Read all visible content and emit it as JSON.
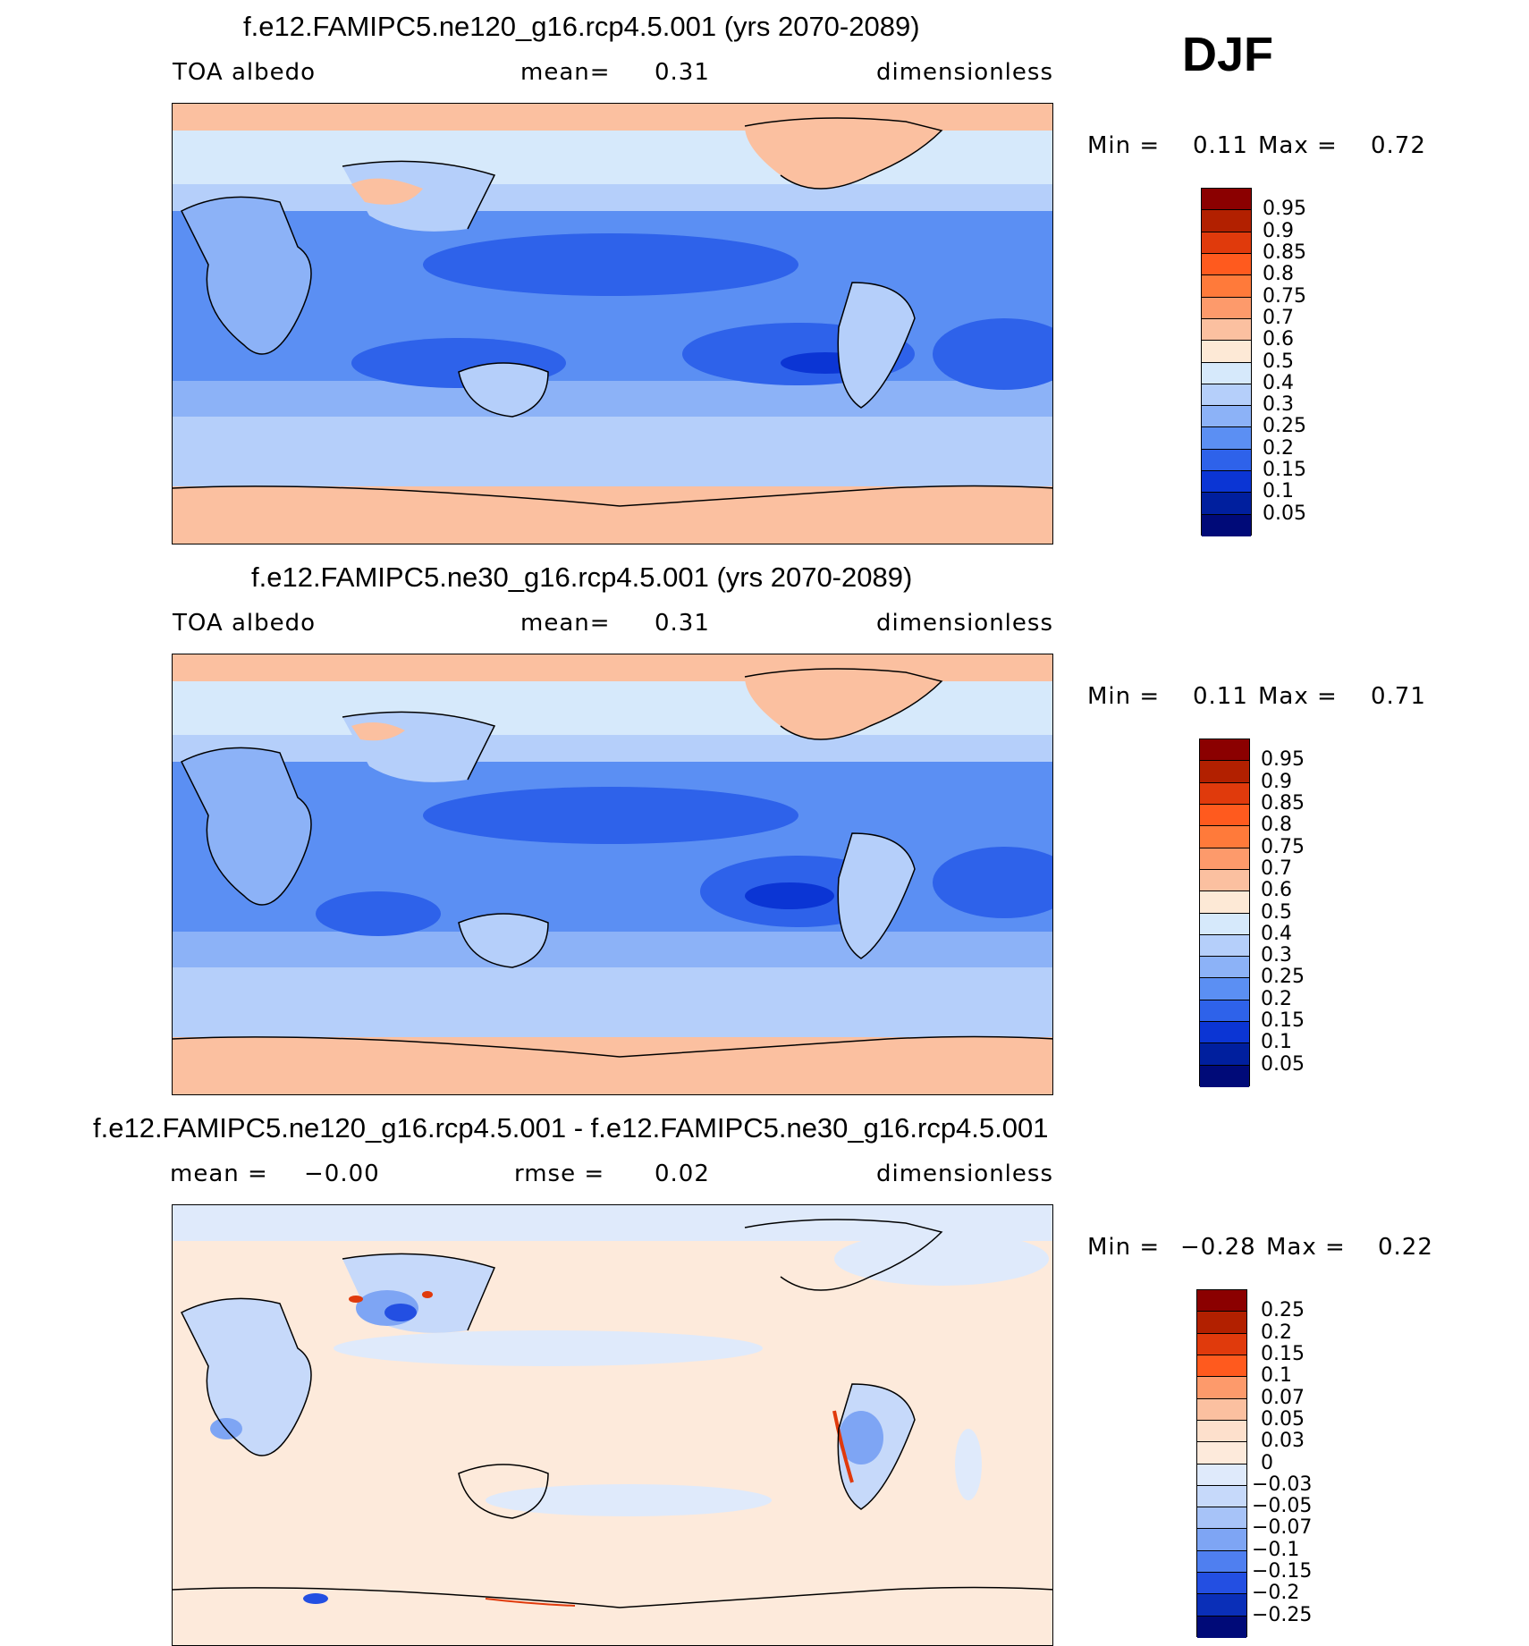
{
  "season": "DJF",
  "panels": [
    {
      "id": "top",
      "title": "f.e12.FAMIPC5.ne120_g16.rcp4.5.001 (yrs 2070-2089)",
      "left_label": "TOA albedo",
      "center_label": "mean=",
      "center_value": "0.31",
      "right_label": "dimensionless",
      "min_label": "Min =",
      "min_value": "0.11",
      "max_label": "Max =",
      "max_value": "0.72",
      "colorbar_labels": [
        "0.95",
        "0.9",
        "0.85",
        "0.8",
        "0.75",
        "0.7",
        "0.6",
        "0.5",
        "0.4",
        "0.3",
        "0.25",
        "0.2",
        "0.15",
        "0.1",
        "0.05"
      ]
    },
    {
      "id": "middle",
      "title": "f.e12.FAMIPC5.ne30_g16.rcp4.5.001 (yrs 2070-2089)",
      "left_label": "TOA albedo",
      "center_label": "mean=",
      "center_value": "0.31",
      "right_label": "dimensionless",
      "min_label": "Min =",
      "min_value": "0.11",
      "max_label": "Max =",
      "max_value": "0.71",
      "colorbar_labels": [
        "0.95",
        "0.9",
        "0.85",
        "0.8",
        "0.75",
        "0.7",
        "0.6",
        "0.5",
        "0.4",
        "0.3",
        "0.25",
        "0.2",
        "0.15",
        "0.1",
        "0.05"
      ]
    },
    {
      "id": "bottom",
      "title": "f.e12.FAMIPC5.ne120_g16.rcp4.5.001 - f.e12.FAMIPC5.ne30_g16.rcp4.5.001",
      "left_label": "mean =",
      "left_value": "−0.00",
      "center_label": "rmse =",
      "center_value": "0.02",
      "right_label": "dimensionless",
      "min_label": "Min =",
      "min_value": "−0.28",
      "max_label": "Max =",
      "max_value": "0.22",
      "colorbar_labels": [
        "0.25",
        "0.2",
        "0.15",
        "0.1",
        "0.07",
        "0.05",
        "0.03",
        "0",
        "−0.03",
        "−0.05",
        "−0.07",
        "−0.1",
        "−0.15",
        "−0.2",
        "−0.25"
      ]
    }
  ],
  "colors": {
    "abs_scale": [
      "#8b0000",
      "#b22000",
      "#e03a0c",
      "#ff5a1e",
      "#ff7a3a",
      "#fd9a6b",
      "#fbc0a0",
      "#fde9d6",
      "#d6e9fb",
      "#b5cffa",
      "#8cb2f7",
      "#5b8ff3",
      "#2e62ea",
      "#0b35d4",
      "#001f9e",
      "#000a78"
    ],
    "diff_scale": [
      "#8b0000",
      "#b22000",
      "#e03a0c",
      "#ff5a1e",
      "#fd9a6b",
      "#fbc0a0",
      "#fde0cc",
      "#fdeadb",
      "#dfeafb",
      "#c6d9fa",
      "#a7c3f8",
      "#7ea5f4",
      "#4f7ff0",
      "#234fe2",
      "#0a2fb8",
      "#000a78"
    ]
  },
  "chart_data": [
    {
      "type": "heatmap",
      "title": "f.e12.FAMIPC5.ne120_g16.rcp4.5.001 (yrs 2070-2089)",
      "variable": "TOA albedo",
      "units": "dimensionless",
      "mean": 0.31,
      "min": 0.11,
      "max": 0.72,
      "levels": [
        0.05,
        0.1,
        0.15,
        0.2,
        0.25,
        0.3,
        0.4,
        0.5,
        0.6,
        0.7,
        0.75,
        0.8,
        0.85,
        0.9,
        0.95
      ],
      "season": "DJF"
    },
    {
      "type": "heatmap",
      "title": "f.e12.FAMIPC5.ne30_g16.rcp4.5.001 (yrs 2070-2089)",
      "variable": "TOA albedo",
      "units": "dimensionless",
      "mean": 0.31,
      "min": 0.11,
      "max": 0.71,
      "levels": [
        0.05,
        0.1,
        0.15,
        0.2,
        0.25,
        0.3,
        0.4,
        0.5,
        0.6,
        0.7,
        0.75,
        0.8,
        0.85,
        0.9,
        0.95
      ],
      "season": "DJF"
    },
    {
      "type": "heatmap",
      "title": "f.e12.FAMIPC5.ne120_g16.rcp4.5.001 - f.e12.FAMIPC5.ne30_g16.rcp4.5.001",
      "units": "dimensionless",
      "mean": -0.0,
      "rmse": 0.02,
      "min": -0.28,
      "max": 0.22,
      "levels": [
        -0.25,
        -0.2,
        -0.15,
        -0.1,
        -0.07,
        -0.05,
        -0.03,
        0,
        0.03,
        0.05,
        0.07,
        0.1,
        0.15,
        0.2,
        0.25
      ],
      "season": "DJF"
    }
  ]
}
